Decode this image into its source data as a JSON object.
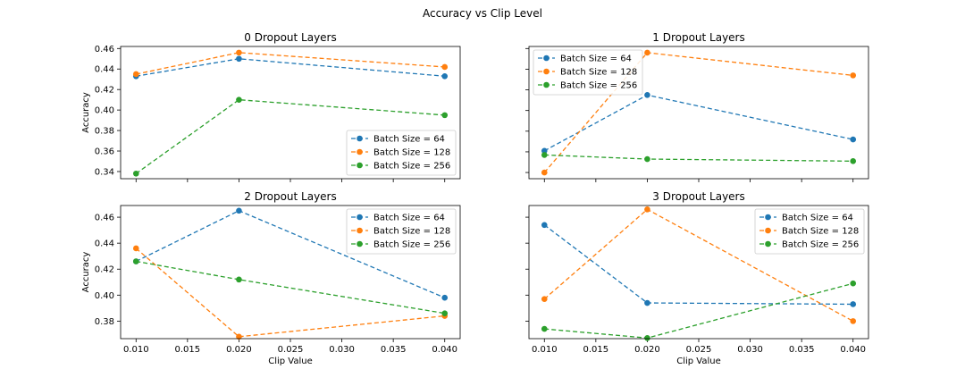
{
  "figure_title": "Accuracy vs Clip Level",
  "chart_data": [
    {
      "type": "line",
      "title": "0 Dropout Layers",
      "xlabel": "",
      "ylabel": "Accuracy",
      "x": [
        0.01,
        0.02,
        0.04
      ],
      "xlim": [
        0.0085,
        0.0415
      ],
      "ylim": [
        0.333,
        0.462
      ],
      "xticks": [
        0.01,
        0.015,
        0.02,
        0.025,
        0.03,
        0.035,
        0.04
      ],
      "xtick_labels": [],
      "yticks": [
        0.34,
        0.36,
        0.38,
        0.4,
        0.42,
        0.44,
        0.46
      ],
      "ytick_labels": [
        "0.34",
        "0.36",
        "0.38",
        "0.40",
        "0.42",
        "0.44",
        "0.46"
      ],
      "legend_position": "lower right",
      "series": [
        {
          "name": "Batch Size = 64",
          "color": "#1f77b4",
          "values": [
            0.433,
            0.45,
            0.433
          ]
        },
        {
          "name": "Batch Size = 128",
          "color": "#ff7f0e",
          "values": [
            0.435,
            0.456,
            0.442
          ]
        },
        {
          "name": "Batch Size = 256",
          "color": "#2ca02c",
          "values": [
            0.338,
            0.41,
            0.395
          ]
        }
      ]
    },
    {
      "type": "line",
      "title": "1 Dropout Layers",
      "xlabel": "",
      "ylabel": "",
      "x": [
        0.01,
        0.02,
        0.04
      ],
      "xlim": [
        0.0085,
        0.0415
      ],
      "ylim": [
        0.334,
        0.462
      ],
      "xticks": [
        0.01,
        0.015,
        0.02,
        0.025,
        0.03,
        0.035,
        0.04
      ],
      "xtick_labels": [],
      "yticks": [
        0.34,
        0.36,
        0.38,
        0.4,
        0.42,
        0.44,
        0.46
      ],
      "ytick_labels": [],
      "legend_position": "upper left",
      "series": [
        {
          "name": "Batch Size = 64",
          "color": "#1f77b4",
          "values": [
            0.361,
            0.415,
            0.372
          ]
        },
        {
          "name": "Batch Size = 128",
          "color": "#ff7f0e",
          "values": [
            0.34,
            0.456,
            0.434
          ]
        },
        {
          "name": "Batch Size = 256",
          "color": "#2ca02c",
          "values": [
            0.357,
            0.353,
            0.351
          ]
        }
      ]
    },
    {
      "type": "line",
      "title": "2 Dropout Layers",
      "xlabel": "Clip Value",
      "ylabel": "Accuracy",
      "x": [
        0.01,
        0.02,
        0.04
      ],
      "xlim": [
        0.0085,
        0.0415
      ],
      "ylim": [
        0.3665,
        0.469
      ],
      "xticks": [
        0.01,
        0.015,
        0.02,
        0.025,
        0.03,
        0.035,
        0.04
      ],
      "xtick_labels": [
        "0.010",
        "0.015",
        "0.020",
        "0.025",
        "0.030",
        "0.035",
        "0.040"
      ],
      "yticks": [
        0.38,
        0.4,
        0.42,
        0.44,
        0.46
      ],
      "ytick_labels": [
        "0.38",
        "0.40",
        "0.42",
        "0.44",
        "0.46"
      ],
      "legend_position": "upper right",
      "series": [
        {
          "name": "Batch Size = 64",
          "color": "#1f77b4",
          "values": [
            0.426,
            0.465,
            0.398
          ]
        },
        {
          "name": "Batch Size = 128",
          "color": "#ff7f0e",
          "values": [
            0.436,
            0.368,
            0.384
          ]
        },
        {
          "name": "Batch Size = 256",
          "color": "#2ca02c",
          "values": [
            0.426,
            0.412,
            0.386
          ]
        }
      ]
    },
    {
      "type": "line",
      "title": "3 Dropout Layers",
      "xlabel": "Clip Value",
      "ylabel": "",
      "x": [
        0.01,
        0.02,
        0.04
      ],
      "xlim": [
        0.0085,
        0.0415
      ],
      "ylim": [
        0.3665,
        0.469
      ],
      "xticks": [
        0.01,
        0.015,
        0.02,
        0.025,
        0.03,
        0.035,
        0.04
      ],
      "xtick_labels": [
        "0.010",
        "0.015",
        "0.020",
        "0.025",
        "0.030",
        "0.035",
        "0.040"
      ],
      "yticks": [
        0.38,
        0.4,
        0.42,
        0.44,
        0.46
      ],
      "ytick_labels": [],
      "legend_position": "upper right",
      "series": [
        {
          "name": "Batch Size = 64",
          "color": "#1f77b4",
          "values": [
            0.454,
            0.394,
            0.393
          ]
        },
        {
          "name": "Batch Size = 128",
          "color": "#ff7f0e",
          "values": [
            0.397,
            0.466,
            0.38
          ]
        },
        {
          "name": "Batch Size = 256",
          "color": "#2ca02c",
          "values": [
            0.374,
            0.367,
            0.409
          ]
        }
      ]
    }
  ]
}
